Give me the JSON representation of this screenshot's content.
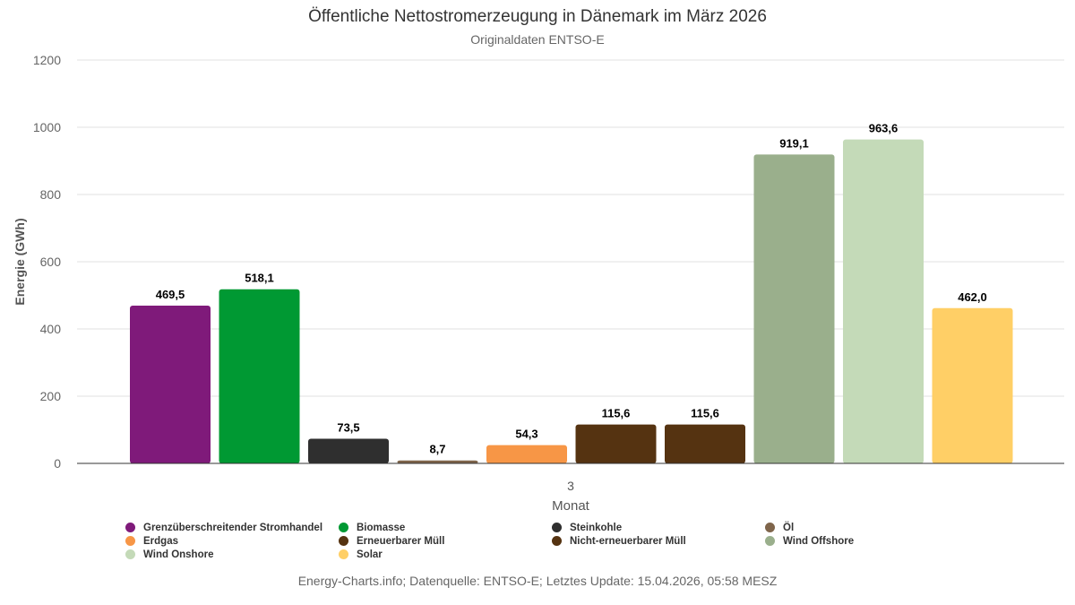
{
  "title": "Öffentliche Nettostromerzeugung in Dänemark im März 2026",
  "subtitle": "Originaldaten ENTSO-E",
  "source": "Energy-Charts.info; Datenquelle: ENTSO-E; Letztes Update: 15.04.2026, 05:58 MESZ",
  "chart_data": {
    "type": "bar",
    "categories": [
      "3"
    ],
    "xlabel": "Monat",
    "ylabel": "Energie (GWh)",
    "ylim": [
      0,
      1200
    ],
    "yticks": [
      0,
      200,
      400,
      600,
      800,
      1000,
      1200
    ],
    "grid": true,
    "legend_position": "bottom",
    "series": [
      {
        "name": "Grenzüberschreitender Stromhandel",
        "values": [
          469.5
        ],
        "label": "469,5",
        "color": "#7f1a7a"
      },
      {
        "name": "Biomasse",
        "values": [
          518.1
        ],
        "label": "518,1",
        "color": "#009933"
      },
      {
        "name": "Steinkohle",
        "values": [
          73.5
        ],
        "label": "73,5",
        "color": "#2f2f2f"
      },
      {
        "name": "Öl",
        "values": [
          8.7
        ],
        "label": "8,7",
        "color": "#7f654b"
      },
      {
        "name": "Erdgas",
        "values": [
          54.3
        ],
        "label": "54,3",
        "color": "#f79646"
      },
      {
        "name": "Erneuerbarer Müll",
        "values": [
          115.6
        ],
        "label": "115,6",
        "color": "#553311"
      },
      {
        "name": "Nicht-erneuerbarer Müll",
        "values": [
          115.6
        ],
        "label": "115,6",
        "color": "#553311"
      },
      {
        "name": "Wind Offshore",
        "values": [
          919.1
        ],
        "label": "919,1",
        "color": "#9aaf8c"
      },
      {
        "name": "Wind Onshore",
        "values": [
          963.6
        ],
        "label": "963,6",
        "color": "#c4dab8"
      },
      {
        "name": "Solar",
        "values": [
          462.0
        ],
        "label": "462,0",
        "color": "#ffcf66"
      }
    ]
  }
}
